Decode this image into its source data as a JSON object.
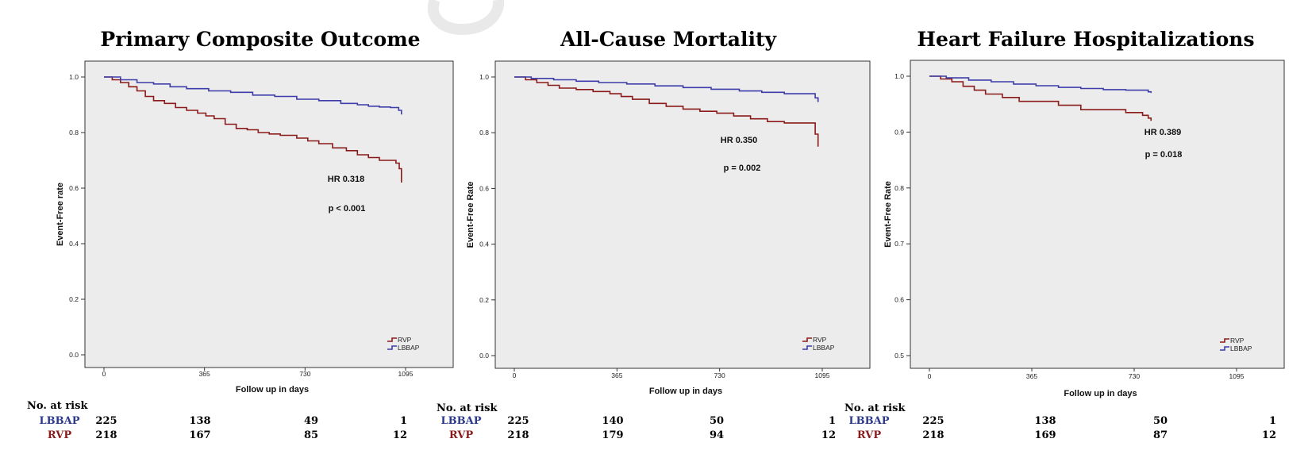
{
  "chart_data": [
    {
      "type": "line",
      "step": true,
      "title": "Primary Composite Outcome",
      "xlabel": "Follow up in days",
      "ylabel": "Event-Free rate",
      "xlim": [
        0,
        1095
      ],
      "ylim": [
        0,
        1.0
      ],
      "xticks": [
        0,
        365,
        730,
        1095
      ],
      "xtick_labels": [
        "0",
        "365",
        "730",
        "1095"
      ],
      "yticks": [
        0,
        0.2,
        0.4,
        0.6,
        0.8,
        1.0
      ],
      "ytick_labels": [
        "0.0",
        "0.2",
        "0.4",
        "0.6",
        "0.8",
        "1.0"
      ],
      "grid": false,
      "legend": "bottom-right",
      "background": "#ececec",
      "annotations": [
        "HR 0.318",
        "p < 0.001"
      ],
      "series": [
        {
          "name": "RVP",
          "color": "#8b1a1a",
          "x": [
            0,
            30,
            60,
            90,
            120,
            150,
            180,
            220,
            260,
            300,
            340,
            370,
            400,
            440,
            480,
            520,
            560,
            600,
            640,
            700,
            740,
            780,
            830,
            880,
            920,
            960,
            1000,
            1050,
            1060,
            1072,
            1080
          ],
          "y": [
            1.0,
            0.99,
            0.98,
            0.965,
            0.95,
            0.93,
            0.915,
            0.905,
            0.89,
            0.88,
            0.87,
            0.86,
            0.85,
            0.83,
            0.815,
            0.81,
            0.8,
            0.795,
            0.79,
            0.78,
            0.77,
            0.76,
            0.745,
            0.735,
            0.72,
            0.71,
            0.7,
            0.7,
            0.69,
            0.67,
            0.62
          ]
        },
        {
          "name": "LBBAP",
          "color": "#3c3caa",
          "x": [
            0,
            60,
            120,
            180,
            240,
            300,
            380,
            460,
            540,
            620,
            700,
            780,
            860,
            920,
            960,
            1000,
            1040,
            1070,
            1080
          ],
          "y": [
            1.0,
            0.99,
            0.98,
            0.975,
            0.965,
            0.958,
            0.95,
            0.945,
            0.935,
            0.93,
            0.92,
            0.915,
            0.905,
            0.9,
            0.895,
            0.892,
            0.89,
            0.88,
            0.865
          ]
        }
      ],
      "risk_table": {
        "label": "No. at risk",
        "rows": [
          {
            "group": "LBBAP",
            "color": "#2b3a8c",
            "values": [
              "225",
              "138",
              "49",
              "1"
            ]
          },
          {
            "group": "RVP",
            "color": "#8b1a1a",
            "values": [
              "218",
              "167",
              "85",
              "12"
            ]
          }
        ]
      }
    },
    {
      "type": "line",
      "step": true,
      "title": "All-Cause Mortality",
      "xlabel": "Follow up in days",
      "ylabel": "Event-Free Rate",
      "xlim": [
        0,
        1095
      ],
      "ylim": [
        0,
        1.0
      ],
      "xticks": [
        0,
        365,
        730,
        1095
      ],
      "xtick_labels": [
        "0",
        "365",
        "730",
        "1095"
      ],
      "yticks": [
        0,
        0.2,
        0.4,
        0.6,
        0.8,
        1.0
      ],
      "ytick_labels": [
        "0.0",
        "0.2",
        "0.4",
        "0.6",
        "0.8",
        "1.0"
      ],
      "grid": false,
      "legend": "bottom-right",
      "background": "#ececec",
      "annotations": [
        "HR 0.350",
        "p = 0.002"
      ],
      "series": [
        {
          "name": "RVP",
          "color": "#8b1a1a",
          "x": [
            0,
            40,
            80,
            120,
            160,
            220,
            280,
            340,
            380,
            420,
            480,
            540,
            600,
            660,
            720,
            780,
            840,
            900,
            960,
            1040,
            1070,
            1080
          ],
          "y": [
            1.0,
            0.99,
            0.98,
            0.97,
            0.96,
            0.955,
            0.948,
            0.94,
            0.93,
            0.92,
            0.905,
            0.895,
            0.885,
            0.877,
            0.87,
            0.86,
            0.85,
            0.84,
            0.835,
            0.835,
            0.795,
            0.75
          ]
        },
        {
          "name": "LBBAP",
          "color": "#3c3caa",
          "x": [
            0,
            60,
            140,
            220,
            300,
            400,
            500,
            600,
            700,
            800,
            880,
            960,
            1040,
            1070,
            1080
          ],
          "y": [
            1.0,
            0.995,
            0.99,
            0.985,
            0.98,
            0.975,
            0.968,
            0.962,
            0.956,
            0.95,
            0.945,
            0.94,
            0.94,
            0.925,
            0.91
          ]
        }
      ],
      "risk_table": {
        "label": "No. at risk",
        "rows": [
          {
            "group": "LBBAP",
            "color": "#2b3a8c",
            "values": [
              "225",
              "140",
              "50",
              "1"
            ]
          },
          {
            "group": "RVP",
            "color": "#8b1a1a",
            "values": [
              "218",
              "179",
              "94",
              "12"
            ]
          }
        ]
      }
    },
    {
      "type": "line",
      "step": true,
      "title": "Heart Failure Hospitalizations",
      "xlabel": "Follow up in days",
      "ylabel": "Event-Free Rate",
      "xlim": [
        0,
        1095
      ],
      "ylim": [
        0.5,
        1.0
      ],
      "xticks": [
        0,
        365,
        730,
        1095
      ],
      "xtick_labels": [
        "0",
        "365",
        "730",
        "1095"
      ],
      "yticks": [
        0.5,
        0.6,
        0.7,
        0.8,
        0.9,
        1.0
      ],
      "ytick_labels": [
        "0.5",
        "0.6",
        "0.7",
        "0.8",
        "0.9",
        "1.0"
      ],
      "grid": false,
      "legend": "bottom-right",
      "background": "#ececec",
      "annotations": [
        "HR 0.389",
        "p = 0.018"
      ],
      "series": [
        {
          "name": "RVP",
          "color": "#8b1a1a",
          "x": [
            0,
            40,
            80,
            120,
            160,
            200,
            260,
            320,
            380,
            460,
            540,
            620,
            700,
            760,
            780,
            790
          ],
          "y": [
            1.0,
            0.995,
            0.99,
            0.982,
            0.975,
            0.968,
            0.962,
            0.955,
            0.955,
            0.948,
            0.94,
            0.94,
            0.935,
            0.93,
            0.925,
            0.92
          ]
        },
        {
          "name": "LBBAP",
          "color": "#3c3caa",
          "x": [
            0,
            60,
            140,
            220,
            300,
            380,
            460,
            540,
            620,
            700,
            760,
            780,
            790
          ],
          "y": [
            1.0,
            0.997,
            0.993,
            0.99,
            0.986,
            0.983,
            0.98,
            0.978,
            0.976,
            0.975,
            0.975,
            0.972,
            0.97
          ]
        }
      ],
      "risk_table": {
        "label": "No. at risk",
        "rows": [
          {
            "group": "LBBAP",
            "color": "#2b3a8c",
            "values": [
              "225",
              "138",
              "50",
              "1"
            ]
          },
          {
            "group": "RVP",
            "color": "#8b1a1a",
            "values": [
              "218",
              "169",
              "87",
              "12"
            ]
          }
        ]
      }
    }
  ]
}
